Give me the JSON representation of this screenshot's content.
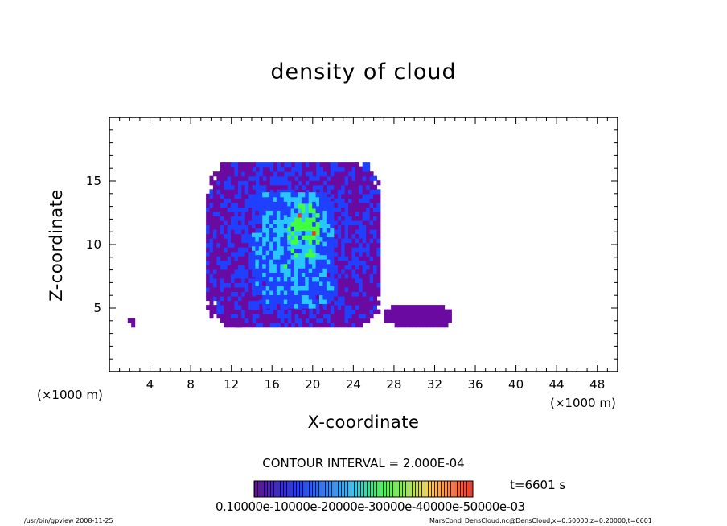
{
  "chart_data": {
    "type": "heatmap",
    "title": "density of cloud",
    "xlabel": "X-coordinate",
    "ylabel": "Z-coordinate",
    "x_unit_left": "(×1000 m)",
    "x_unit_right": "(×1000 m)",
    "xlim": [
      0,
      50
    ],
    "ylim": [
      0,
      20
    ],
    "x_ticks": [
      4,
      8,
      12,
      16,
      20,
      24,
      28,
      32,
      36,
      40,
      44,
      48
    ],
    "x_tick_labels": [
      "4",
      "8",
      "12",
      "16",
      "20",
      "24",
      "28",
      "32",
      "36",
      "40",
      "44",
      "48"
    ],
    "y_ticks": [
      5,
      10,
      15
    ],
    "y_tick_labels": [
      "5",
      "10",
      "15"
    ],
    "contour_interval": "CONTOUR INTERVAL = 2.000E-04",
    "time": "t=6601 s",
    "colorbar_labels": "0.10000e-10000e-20000e-30000e-40000e-50000e-03",
    "colorbar_range": [
      0.0,
      0.0006
    ],
    "colors": {
      "background": "#ffffff",
      "low": "#6a0aa0",
      "mid_low": "#2040ff",
      "mid": "#28c8ff",
      "mid_high": "#40ff40",
      "high": "#ff3020"
    },
    "regions": [
      {
        "name": "cloud-main",
        "x_range": [
          9.5,
          26.5
        ],
        "z_range": [
          3.5,
          16.3
        ],
        "level": 0.00014
      },
      {
        "name": "cloud-core",
        "x_range": [
          14,
          22
        ],
        "z_range": [
          5,
          14
        ],
        "level": 0.00026
      },
      {
        "name": "cloud-peak",
        "x_range": [
          17.5,
          20.5
        ],
        "z_range": [
          9,
          13
        ],
        "level": 0.0004
      },
      {
        "name": "base-patch-left",
        "x_range": [
          12,
          13
        ],
        "z_range": [
          3.5,
          4
        ],
        "level": 4e-05
      },
      {
        "name": "base-patch-right",
        "x_range": [
          27,
          33.5
        ],
        "z_range": [
          3.5,
          4.9
        ],
        "level": 4e-05
      },
      {
        "name": "speck-left",
        "x_range": [
          1.8,
          2.4
        ],
        "z_range": [
          3.5,
          4
        ],
        "level": 4e-05
      }
    ]
  },
  "footer": {
    "left": "/usr/bin/gpview   2008-11-25",
    "right": "MarsCond_DensCloud.nc@DensCloud,x=0:50000,z=0:20000,t=6601"
  }
}
